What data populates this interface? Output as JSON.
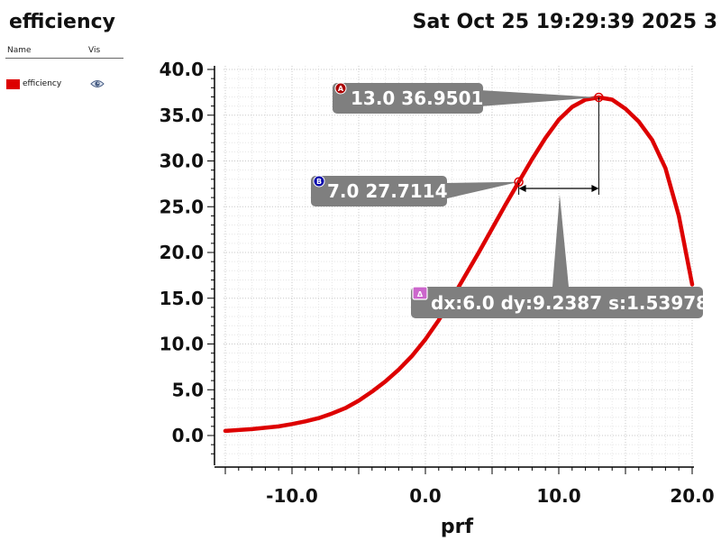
{
  "header": {
    "title": "efficiency",
    "timestamp": "Sat Oct 25 19:29:39 2025 3"
  },
  "legend": {
    "col_name": "Name",
    "col_vis": "Vis",
    "items": [
      {
        "label": "efficiency",
        "color": "#dd0000",
        "visible": true,
        "icon": "eye-icon"
      }
    ]
  },
  "chart_data": {
    "type": "line",
    "xlabel": "prf",
    "ylabel": "",
    "xlim": [
      -15,
      20
    ],
    "ylim": [
      -3,
      40.5
    ],
    "xticks": [
      -10.0,
      0.0,
      10.0,
      20.0
    ],
    "xtick_labels": [
      "-10.0",
      "0.0",
      "10.0",
      "20.0"
    ],
    "yticks": [
      0.0,
      5.0,
      10.0,
      15.0,
      20.0,
      25.0,
      30.0,
      35.0,
      40.0
    ],
    "ytick_labels": [
      "0.0",
      "5.0",
      "10.0",
      "15.0",
      "20.0",
      "25.0",
      "30.0",
      "35.0",
      "40.0"
    ],
    "grid": true,
    "series": [
      {
        "name": "efficiency",
        "color": "#dd0000",
        "x": [
          -15,
          -14,
          -13,
          -12,
          -11,
          -10,
          -9,
          -8,
          -7,
          -6,
          -5,
          -4,
          -3,
          -2,
          -1,
          0,
          1,
          2,
          3,
          4,
          5,
          6,
          7,
          8,
          9,
          10,
          11,
          12,
          13,
          14,
          15,
          16,
          17,
          18,
          19,
          20
        ],
        "y": [
          0.5,
          0.6,
          0.7,
          0.85,
          1.0,
          1.25,
          1.55,
          1.9,
          2.4,
          3.0,
          3.8,
          4.8,
          5.9,
          7.2,
          8.7,
          10.5,
          12.6,
          15.0,
          17.5,
          20.0,
          22.6,
          25.2,
          27.71,
          30.2,
          32.5,
          34.5,
          35.9,
          36.7,
          36.95,
          36.7,
          35.7,
          34.3,
          32.3,
          29.2,
          24.0,
          16.5
        ]
      }
    ],
    "markers": [
      {
        "id": "A",
        "badge_color": "#aa0000",
        "x": 13.0,
        "y": 36.9501,
        "label": "13.0 36.9501"
      },
      {
        "id": "B",
        "badge_color": "#0000aa",
        "x": 7.0,
        "y": 27.7114,
        "label": "7.0 27.7114"
      }
    ],
    "delta": {
      "badge": "Δ",
      "badge_color": "#cc66cc",
      "label": "dx:6.0 dy:9.2387 s:1.53978"
    }
  }
}
